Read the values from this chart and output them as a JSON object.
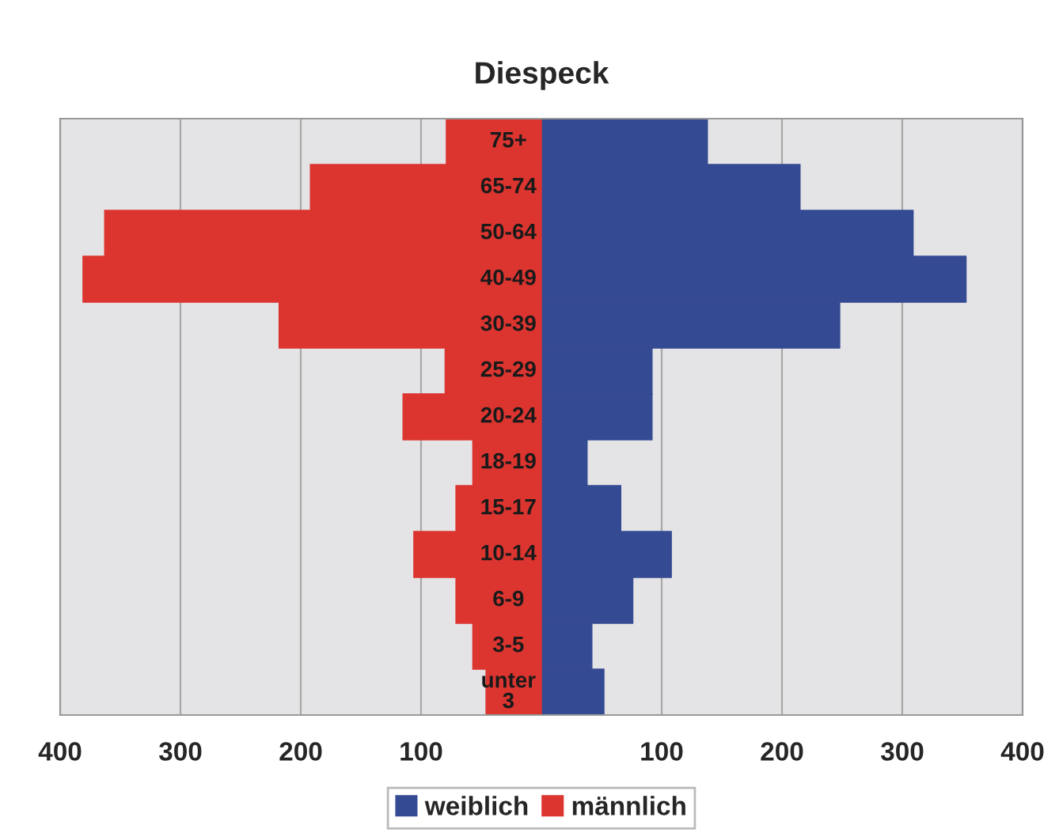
{
  "chart_data": {
    "type": "bar",
    "orientation": "horizontal",
    "title": "Diespeck",
    "categories": [
      "75+",
      "65-74",
      "50-64",
      "40-49",
      "30-39",
      "25-29",
      "20-24",
      "18-19",
      "15-17",
      "10-14",
      "6-9",
      "3-5",
      "unter 3"
    ],
    "series": [
      {
        "name": "weiblich",
        "color": "#344a92",
        "values": [
          138,
          215,
          309,
          353,
          248,
          92,
          92,
          38,
          66,
          108,
          76,
          42,
          52
        ]
      },
      {
        "name": "männlich",
        "color": "#dc3530",
        "values": [
          -79,
          -192,
          -363,
          -381,
          -218,
          -80,
          -115,
          -57,
          -71,
          -106,
          -71,
          -57,
          -46
        ]
      }
    ],
    "xlim": [
      -400,
      400
    ],
    "xticks": [
      {
        "value": -400,
        "label": "400"
      },
      {
        "value": -300,
        "label": "300"
      },
      {
        "value": -200,
        "label": "200"
      },
      {
        "value": -100,
        "label": "100"
      },
      100,
      200,
      300,
      400
    ],
    "stacked": true,
    "grid": "x",
    "legend": "bottom"
  }
}
